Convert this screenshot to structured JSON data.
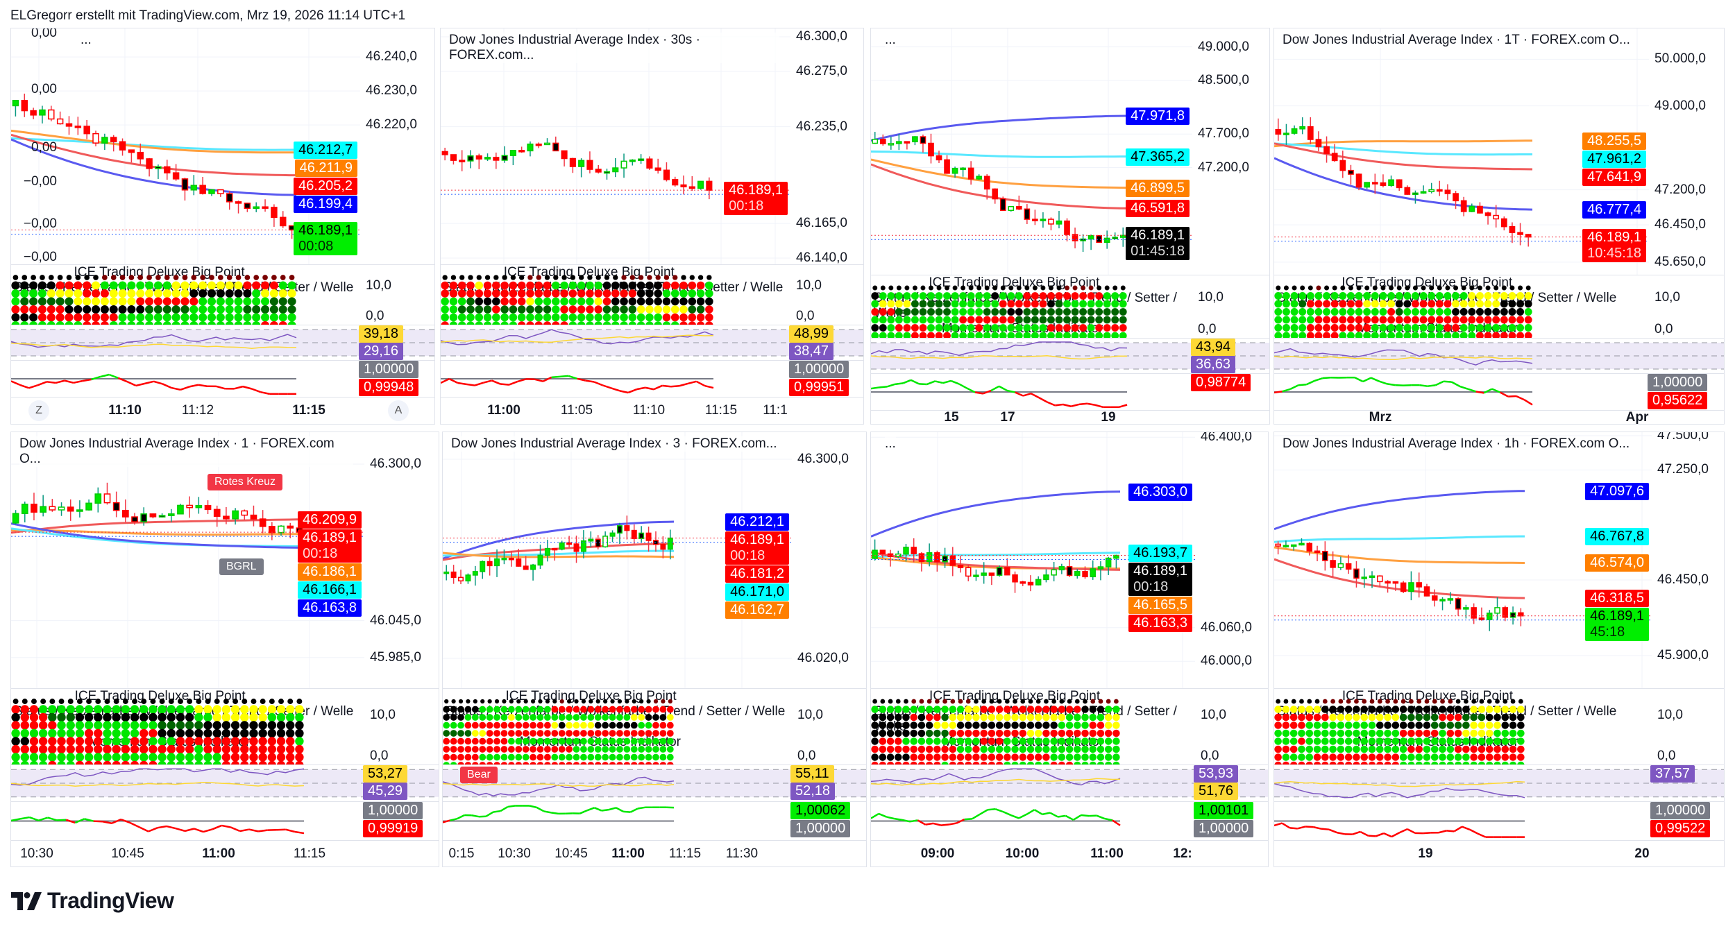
{
  "header": {
    "attribution": "ELGregorr erstellt mit TradingView.com, Mrz 19, 2026 11:14 UTC+1"
  },
  "footer": {
    "logo_text": "TradingView"
  },
  "indicator_texts": {
    "ice": "ICE Trading Deluxe Big Point",
    "status": "Status / Kerzenfarbe / Wolkenfarbe / Trend / Setter / Welle",
    "momentum": "Momentum Status Indikator"
  },
  "panels": [
    {
      "title": "...",
      "range": [
        46179,
        46248.4
      ],
      "ticks": [
        "46.240,0",
        "46.230,0",
        "46.220,0"
      ],
      "left_ticks": [
        "0,00",
        "0,00",
        "0,00",
        "−0,00",
        "−0,00",
        "−0,00"
      ],
      "labels": [
        {
          "value": "46.212,7",
          "bg": "#00ffff",
          "fg": "#000000"
        },
        {
          "value": "46.211,9",
          "bg": "#ff7f00",
          "fg": "#ffffff"
        },
        {
          "value": "46.205,2",
          "bg": "#ff0000",
          "fg": "#ffffff"
        },
        {
          "value": "46.199,4",
          "bg": "#0000ff",
          "fg": "#ffffff"
        },
        {
          "value": "46.189,1",
          "time": "00:08",
          "bg": "#00ee00",
          "fg": "#000000"
        }
      ],
      "dots_axis": [
        "10,0",
        "0,0"
      ],
      "rsi": [
        {
          "value": "39,18",
          "bg": "#fdd835",
          "fg": "#000000"
        },
        {
          "value": "29,16",
          "bg": "#7e57c2",
          "fg": "#ffffff"
        }
      ],
      "ratio": [
        {
          "value": "1,00000",
          "bg": "#787b86",
          "fg": "#ffffff"
        },
        {
          "value": "0,99948",
          "bg": "#ff0000",
          "fg": "#ffffff"
        }
      ],
      "time": [
        {
          "label": "Z",
          "button": true
        },
        {
          "label": "11:10",
          "bold": true
        },
        {
          "label": "11:12"
        },
        {
          "label": "11:15",
          "bold": true
        },
        {
          "label": "A",
          "button": true
        }
      ],
      "annotations": []
    },
    {
      "title": "Dow Jones Industrial Average Index · 30s · FOREX.com...",
      "range": [
        46135.5,
        46306
      ],
      "ticks": [
        "46.300,0",
        "46.275,0",
        "46.235,0",
        "46.165,0",
        "46.140,0"
      ],
      "left_ticks": [],
      "labels": [
        {
          "value": "46.189,1",
          "time": "00:18",
          "bg": "#ff0000",
          "fg": "#ffffff"
        }
      ],
      "dots_axis": [
        "10,0",
        "0,0"
      ],
      "rsi": [
        {
          "value": "48,99",
          "bg": "#fdd835",
          "fg": "#000000"
        },
        {
          "value": "38,47",
          "bg": "#7e57c2",
          "fg": "#ffffff"
        }
      ],
      "ratio": [
        {
          "value": "1,00000",
          "bg": "#787b86",
          "fg": "#ffffff"
        },
        {
          "value": "0,99951",
          "bg": "#ff0000",
          "fg": "#ffffff"
        }
      ],
      "time": [
        {
          "label": "11:00",
          "bold": true
        },
        {
          "label": "11:05"
        },
        {
          "label": "11:10"
        },
        {
          "label": "11:15"
        },
        {
          "label": "11:1"
        }
      ],
      "annotations": []
    },
    {
      "title": "...",
      "range": [
        45602,
        49275
      ],
      "ticks": [
        "49.000,0",
        "48.500,0",
        "47.700,0",
        "47.200,0"
      ],
      "left_ticks": [],
      "labels": [
        {
          "value": "47.971,8",
          "bg": "#0000ff",
          "fg": "#ffffff"
        },
        {
          "value": "47.365,2",
          "bg": "#00ffff",
          "fg": "#000000"
        },
        {
          "value": "46.899,5",
          "bg": "#ff7f00",
          "fg": "#ffffff"
        },
        {
          "value": "46.591,8",
          "bg": "#ff0000",
          "fg": "#ffffff"
        },
        {
          "value": "46.189,1",
          "time": "01:45:18",
          "bg": "#000000",
          "fg": "#ffffff"
        }
      ],
      "dots_axis": [
        "10,0",
        "0,0"
      ],
      "rsi": [
        {
          "value": "43,94",
          "bg": "#fdd835",
          "fg": "#000000"
        },
        {
          "value": "36,63",
          "bg": "#7e57c2",
          "fg": "#ffffff"
        }
      ],
      "ratio": [
        {
          "value": "0,98774",
          "bg": "#ff0000",
          "fg": "#ffffff"
        }
      ],
      "time": [
        {
          "label": "15",
          "bold": true
        },
        {
          "label": "17",
          "bold": true
        },
        {
          "label": "19",
          "bold": true
        }
      ],
      "annotations": []
    },
    {
      "title": "Dow Jones Industrial Average Index · 1T · FOREX.com  O...",
      "range": [
        45380,
        50661
      ],
      "ticks": [
        "50.000,0",
        "49.000,0",
        "47.200,0",
        "46.450,0",
        "45.650,0"
      ],
      "left_ticks": [],
      "labels": [
        {
          "value": "48.255,5",
          "bg": "#ff7f00",
          "fg": "#ffffff"
        },
        {
          "value": "47.961,2",
          "bg": "#00ffff",
          "fg": "#000000"
        },
        {
          "value": "47.641,9",
          "bg": "#ff0000",
          "fg": "#ffffff"
        },
        {
          "value": "46.777,4",
          "bg": "#0000ff",
          "fg": "#ffffff"
        },
        {
          "value": "46.189,1",
          "time": "10:45:18",
          "bg": "#ff0000",
          "fg": "#ffffff"
        }
      ],
      "dots_axis": [
        "10,0",
        "0,0"
      ],
      "rsi": [],
      "ratio": [
        {
          "value": "1,00000",
          "bg": "#787b86",
          "fg": "#ffffff"
        },
        {
          "value": "0,95622",
          "bg": "#ff0000",
          "fg": "#ffffff"
        }
      ],
      "time": [
        {
          "label": "Mrz",
          "bold": true
        },
        {
          "label": "Apr",
          "bold": true
        }
      ],
      "annotations": []
    },
    {
      "title": "Dow Jones Industrial Average Index · 1 · FOREX.com  O...",
      "range": [
        45935,
        46352
      ],
      "ticks": [
        "46.300,0",
        "46.045,0",
        "45.985,0"
      ],
      "left_ticks": [],
      "labels": [
        {
          "value": "46.209,9",
          "bg": "#ff0000",
          "fg": "#ffffff"
        },
        {
          "value": "46.189,1",
          "time": "00:18",
          "bg": "#ff0000",
          "fg": "#ffffff"
        },
        {
          "value": "46.186,1",
          "bg": "#ff7f00",
          "fg": "#ffffff"
        },
        {
          "value": "46.166,1",
          "bg": "#00ffff",
          "fg": "#000000"
        },
        {
          "value": "46.163,8",
          "bg": "#0000ff",
          "fg": "#ffffff"
        }
      ],
      "dots_axis": [
        "10,0",
        "0,0"
      ],
      "rsi": [
        {
          "value": "53,27",
          "bg": "#fdd835",
          "fg": "#000000"
        },
        {
          "value": "45,29",
          "bg": "#7e57c2",
          "fg": "#ffffff"
        }
      ],
      "ratio": [
        {
          "value": "1,00000",
          "bg": "#787b86",
          "fg": "#ffffff"
        },
        {
          "value": "0,99919",
          "bg": "#ff0000",
          "fg": "#ffffff"
        }
      ],
      "time": [
        {
          "label": "10:30"
        },
        {
          "label": "10:45"
        },
        {
          "label": "11:00",
          "bold": true
        },
        {
          "label": "11:15"
        }
      ],
      "annotations": [
        {
          "text": "Rotes Kreuz",
          "bg": "#f23645"
        },
        {
          "text": "BGRL",
          "bg": "#787b86"
        }
      ]
    },
    {
      "title": "Dow Jones Industrial Average Index · 3 · FOREX.com...",
      "range": [
        45978,
        46338
      ],
      "ticks": [
        "46.300,0",
        "46.020,0"
      ],
      "left_ticks": [],
      "labels": [
        {
          "value": "46.212,1",
          "bg": "#0000ff",
          "fg": "#ffffff"
        },
        {
          "value": "46.189,1",
          "time": "00:18",
          "bg": "#ff0000",
          "fg": "#ffffff"
        },
        {
          "value": "46.181,2",
          "bg": "#ff0000",
          "fg": "#ffffff"
        },
        {
          "value": "46.171,0",
          "bg": "#00ffff",
          "fg": "#000000"
        },
        {
          "value": "46.162,7",
          "bg": "#ff7f00",
          "fg": "#ffffff"
        }
      ],
      "dots_axis": [
        "10,0",
        "0,0"
      ],
      "rsi": [
        {
          "value": "55,11",
          "bg": "#fdd835",
          "fg": "#000000"
        },
        {
          "value": "52,18",
          "bg": "#7e57c2",
          "fg": "#ffffff"
        }
      ],
      "ratio": [
        {
          "value": "1,00062",
          "bg": "#00ee00",
          "fg": "#000000"
        },
        {
          "value": "1,00000",
          "bg": "#787b86",
          "fg": "#ffffff"
        }
      ],
      "time": [
        {
          "label": "0:15"
        },
        {
          "label": "10:30"
        },
        {
          "label": "10:45"
        },
        {
          "label": "11:00",
          "bold": true
        },
        {
          "label": "11:15"
        },
        {
          "label": "11:30"
        }
      ],
      "annotations": [
        {
          "text": "Bear",
          "bg": "#f23645"
        }
      ]
    },
    {
      "title": "...",
      "range": [
        45952,
        46409
      ],
      "ticks": [
        "46.400,0",
        "46.060,0",
        "46.000,0"
      ],
      "left_ticks": [],
      "labels": [
        {
          "value": "46.303,0",
          "bg": "#0000ff",
          "fg": "#ffffff"
        },
        {
          "value": "46.193,7",
          "bg": "#00ffff",
          "fg": "#000000"
        },
        {
          "value": "46.189,1",
          "time": "00:18",
          "bg": "#000000",
          "fg": "#ffffff"
        },
        {
          "value": "46.165,5",
          "bg": "#ff7f00",
          "fg": "#ffffff"
        },
        {
          "value": "46.163,3",
          "bg": "#ff0000",
          "fg": "#ffffff"
        }
      ],
      "dots_axis": [
        "10,0",
        "0,0"
      ],
      "rsi": [
        {
          "value": "53,93",
          "bg": "#7e57c2",
          "fg": "#ffffff"
        },
        {
          "value": "51,76",
          "bg": "#fdd835",
          "fg": "#000000"
        }
      ],
      "ratio": [
        {
          "value": "1,00101",
          "bg": "#00ee00",
          "fg": "#000000"
        },
        {
          "value": "1,00000",
          "bg": "#787b86",
          "fg": "#ffffff"
        }
      ],
      "time": [
        {
          "label": "09:00",
          "bold": true
        },
        {
          "label": "10:00",
          "bold": true
        },
        {
          "label": "11:00",
          "bold": true
        },
        {
          "label": "12:",
          "bold": true
        }
      ],
      "annotations": []
    },
    {
      "title": "Dow Jones Industrial Average Index · 1h · FOREX.com  O...",
      "range": [
        45663,
        47525
      ],
      "ticks": [
        "47.500,0",
        "47.250,0",
        "46.450,0",
        "45.900,0"
      ],
      "left_ticks": [],
      "labels": [
        {
          "value": "47.097,6",
          "bg": "#0000ff",
          "fg": "#ffffff"
        },
        {
          "value": "46.767,8",
          "bg": "#00ffff",
          "fg": "#000000"
        },
        {
          "value": "46.574,0",
          "bg": "#ff7f00",
          "fg": "#ffffff"
        },
        {
          "value": "46.318,5",
          "bg": "#ff0000",
          "fg": "#ffffff"
        },
        {
          "value": "46.189,1",
          "time": "45:18",
          "bg": "#00ee00",
          "fg": "#000000"
        }
      ],
      "dots_axis": [
        "10,0",
        "0,0"
      ],
      "rsi": [
        {
          "value": "37,57",
          "bg": "#7e57c2",
          "fg": "#ffffff"
        }
      ],
      "ratio": [
        {
          "value": "1,00000",
          "bg": "#787b86",
          "fg": "#ffffff"
        },
        {
          "value": "0,99522",
          "bg": "#ff0000",
          "fg": "#ffffff"
        }
      ],
      "time": [
        {
          "label": "19",
          "bold": true
        },
        {
          "label": "20",
          "bold": true
        }
      ],
      "annotations": []
    }
  ]
}
